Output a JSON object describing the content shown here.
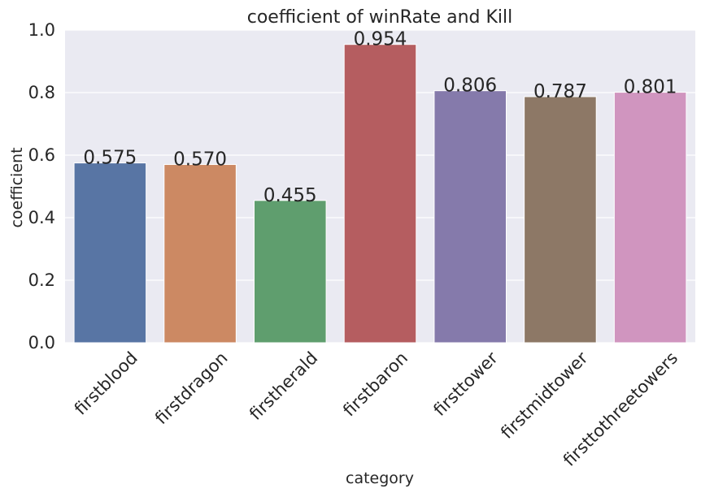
{
  "chart_data": {
    "type": "bar",
    "title": "coefficient of winRate and Kill",
    "xlabel": "category",
    "ylabel": "coefficient",
    "categories": [
      "firstblood",
      "firstdragon",
      "firstherald",
      "firstbaron",
      "firsttower",
      "firstmidtower",
      "firsttothreetowers"
    ],
    "values": [
      0.575,
      0.57,
      0.455,
      0.954,
      0.806,
      0.787,
      0.801
    ],
    "value_labels": [
      "0.575",
      "0.570",
      "0.455",
      "0.954",
      "0.806",
      "0.787",
      "0.801"
    ],
    "ylim": [
      0,
      1.0
    ],
    "yticks": [
      0.0,
      0.2,
      0.4,
      0.6,
      0.8,
      1.0
    ],
    "ytick_labels": [
      "0.0",
      "0.2",
      "0.4",
      "0.6",
      "0.8",
      "1.0"
    ],
    "grid": true,
    "colors": [
      "#5875a4",
      "#cc8963",
      "#5f9e6e",
      "#b55d60",
      "#857aab",
      "#8d7866",
      "#d095bf"
    ],
    "background": "#eaeaf2",
    "grid_color": "#ffffff"
  }
}
